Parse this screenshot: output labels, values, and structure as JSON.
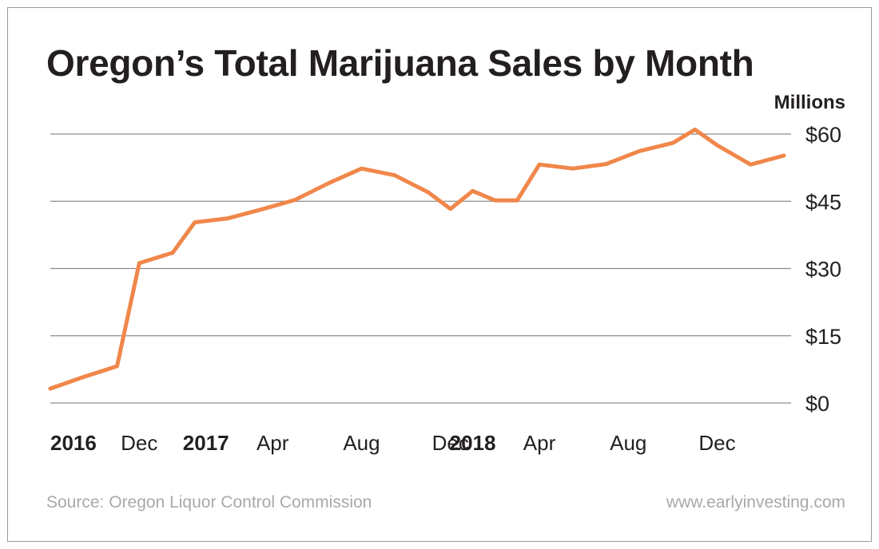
{
  "title": "Oregon’s Total Marijuana Sales by Month",
  "units_label": "Millions",
  "source": "Source: Oregon Liquor Control Commission",
  "site": "www.earlyinvesting.com",
  "colors": {
    "line": "#f0874a",
    "grid": "#8c8c8c",
    "text": "#231f20",
    "muted": "#a7a9ac"
  },
  "chart_data": {
    "type": "line",
    "title": "Oregon’s Total Marijuana Sales by Month",
    "ylabel": "Millions",
    "xlabel": "",
    "ylim": [
      0,
      60
    ],
    "y_axis_position": "right",
    "y_ticks": [
      0,
      15,
      30,
      45,
      60
    ],
    "y_tick_labels": [
      "$0",
      "$15",
      "$30",
      "$45",
      "$60"
    ],
    "x_ticks": [
      {
        "x": 0,
        "label": "2016",
        "bold": true
      },
      {
        "x": 4,
        "label": "Dec",
        "bold": false
      },
      {
        "x": 7,
        "label": "2017",
        "bold": true
      },
      {
        "x": 10,
        "label": "Apr",
        "bold": false
      },
      {
        "x": 14,
        "label": "Aug",
        "bold": false
      },
      {
        "x": 18,
        "label": "Dec",
        "bold": false
      },
      {
        "x": 19,
        "label": "2018",
        "bold": true
      },
      {
        "x": 22,
        "label": "Apr",
        "bold": false
      },
      {
        "x": 26,
        "label": "Aug",
        "bold": false
      },
      {
        "x": 30,
        "label": "Dec",
        "bold": false
      }
    ],
    "grid": true,
    "series": [
      {
        "x": [
          0,
          1.5,
          3,
          4,
          5.5,
          6.5,
          8,
          9.5,
          11,
          12.5,
          14,
          15.5,
          17,
          18,
          19,
          20,
          21,
          22,
          23.5,
          25,
          26.5,
          28,
          29,
          30,
          31.5,
          33
        ],
        "values": [
          3.2,
          5.8,
          8.2,
          31.2,
          33.5,
          40.3,
          41.2,
          43.2,
          45.3,
          49,
          52.3,
          50.8,
          47,
          43.3,
          47.3,
          45.2,
          45.2,
          53.2,
          52.3,
          53.3,
          56.2,
          58,
          61,
          57.5,
          53.2,
          55.2
        ]
      }
    ]
  }
}
